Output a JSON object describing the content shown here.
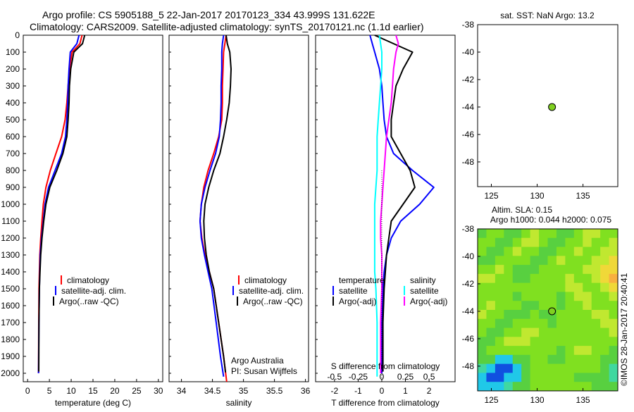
{
  "header": {
    "title_line1": "Argo profile: CS 5905188_5 22-Jan-2017 20170123_334 43.999S 131.622E",
    "title_line2": "Climatology: CARS2009. Satellite-adjusted climatology: synTS_20170121.nc (1.1d earlier)"
  },
  "credit": "©IMOS 28-Jan-2017 20:40:41",
  "colors": {
    "climatology": "#ff0000",
    "satellite": "#0000ff",
    "argo": "#000000",
    "sal_satellite": "#00ffff",
    "sal_argo": "#ff00ff",
    "float_marker": "#80d020"
  },
  "chart_data": [
    {
      "id": "temperature",
      "type": "line",
      "xlabel": "temperature (deg C)",
      "xlim": [
        -1,
        31
      ],
      "xticks": [
        "0",
        "5",
        "10",
        "15",
        "20",
        "25",
        "30"
      ],
      "xtick_values": [
        0,
        5,
        10,
        15,
        20,
        25,
        30
      ],
      "ylim": [
        2050,
        0
      ],
      "yticks": [
        "0",
        "100",
        "200",
        "300",
        "400",
        "500",
        "600",
        "700",
        "800",
        "900",
        "1000",
        "1100",
        "1200",
        "1300",
        "1400",
        "1500",
        "1600",
        "1700",
        "1800",
        "1900",
        "2000"
      ],
      "ytick_values": [
        0,
        100,
        200,
        300,
        400,
        500,
        600,
        700,
        800,
        900,
        1000,
        1100,
        1200,
        1300,
        1400,
        1500,
        1600,
        1700,
        1800,
        1900,
        2000
      ],
      "legend": [
        "climatology",
        "satellite-adj. clim.",
        "Argo(..raw -QC)"
      ],
      "series": [
        {
          "name": "climatology",
          "color": "#ff0000",
          "x": [
            12.5,
            12.0,
            10.2,
            9.6,
            9.3,
            9.0,
            8.6,
            7.8,
            6.5,
            5.2,
            4.2,
            3.6,
            3.3,
            3.0,
            2.8,
            2.7,
            2.6,
            2.55,
            2.5
          ],
          "y": [
            0,
            50,
            100,
            200,
            300,
            400,
            500,
            600,
            700,
            800,
            900,
            1000,
            1100,
            1200,
            1300,
            1400,
            1500,
            1700,
            2000
          ]
        },
        {
          "name": "satellite-adj. clim.",
          "color": "#0000ff",
          "x": [
            11.8,
            11.3,
            9.8,
            9.5,
            9.3,
            9.2,
            9.0,
            8.7,
            7.8,
            6.3,
            4.8,
            4.0,
            3.6,
            3.2,
            2.9,
            2.8,
            2.7,
            2.6,
            2.5
          ],
          "y": [
            0,
            50,
            100,
            200,
            300,
            400,
            500,
            600,
            700,
            800,
            900,
            1000,
            1100,
            1200,
            1300,
            1400,
            1500,
            1700,
            2000
          ]
        },
        {
          "name": "Argo(..raw -QC)",
          "color": "#000000",
          "x": [
            13.1,
            12.6,
            10.6,
            9.9,
            9.6,
            9.5,
            9.3,
            9.0,
            8.1,
            6.7,
            5.1,
            4.2,
            3.7,
            3.3,
            3.0,
            2.85,
            2.7,
            2.6,
            2.55
          ],
          "y": [
            0,
            50,
            100,
            200,
            300,
            400,
            500,
            600,
            700,
            800,
            900,
            1000,
            1100,
            1200,
            1300,
            1400,
            1500,
            1700,
            1990
          ]
        }
      ]
    },
    {
      "id": "salinity",
      "type": "line",
      "xlabel": "salinity",
      "xlim": [
        33.8,
        36.05
      ],
      "xticks": [
        "34",
        "34.5",
        "35",
        "35.5",
        "36"
      ],
      "xtick_values": [
        34,
        34.5,
        35,
        35.5,
        36
      ],
      "ylim": [
        2050,
        0
      ],
      "legend": [
        "climatology",
        "satellite-adj. clim.",
        "Argo(..raw -QC)"
      ],
      "annotation": [
        "Argo Australia",
        "PI: Susan Wijffels"
      ],
      "series": [
        {
          "name": "climatology",
          "color": "#ff0000",
          "x": [
            34.72,
            34.7,
            34.68,
            34.67,
            34.66,
            34.66,
            34.65,
            34.6,
            34.52,
            34.43,
            34.36,
            34.32,
            34.3,
            34.33,
            34.38,
            34.45,
            34.52,
            34.6,
            34.68,
            34.73
          ],
          "y": [
            0,
            50,
            100,
            200,
            300,
            400,
            500,
            600,
            700,
            800,
            900,
            1000,
            1100,
            1200,
            1300,
            1400,
            1500,
            1700,
            1900,
            2050
          ]
        },
        {
          "name": "satellite-adj. clim.",
          "color": "#0000ff",
          "x": [
            34.68,
            34.66,
            34.65,
            34.65,
            34.64,
            34.64,
            34.63,
            34.61,
            34.55,
            34.46,
            34.38,
            34.32,
            34.3,
            34.32,
            34.37,
            34.43,
            34.49,
            34.56,
            34.63,
            34.68
          ],
          "y": [
            0,
            50,
            100,
            200,
            300,
            400,
            500,
            600,
            700,
            800,
            900,
            1000,
            1100,
            1200,
            1300,
            1400,
            1500,
            1700,
            1900,
            2020
          ]
        },
        {
          "name": "Argo(..raw -QC)",
          "color": "#000000",
          "x": [
            34.72,
            34.74,
            34.78,
            34.8,
            34.79,
            34.77,
            34.73,
            34.68,
            34.62,
            34.52,
            34.44,
            34.38,
            34.36,
            34.37,
            34.4,
            34.45,
            34.52,
            34.6,
            34.68,
            34.71
          ],
          "y": [
            0,
            50,
            100,
            200,
            300,
            400,
            500,
            600,
            700,
            800,
            900,
            1000,
            1100,
            1200,
            1300,
            1400,
            1500,
            1700,
            1900,
            1995
          ]
        }
      ]
    },
    {
      "id": "difference",
      "type": "line",
      "xlabel": "T difference from climatology",
      "xlabel_top": "S difference from climatology",
      "xlim": [
        -2.8,
        3.1
      ],
      "xticks": [
        "-2",
        "-1",
        "0",
        "1",
        "2"
      ],
      "xtick_values": [
        -2,
        -1,
        0,
        1,
        2
      ],
      "xticks_top": [
        "-0.5",
        "-0.25",
        "0",
        "0.25",
        "0.5"
      ],
      "xtick_top_values": [
        -2,
        -1,
        0,
        1,
        2
      ],
      "ylim": [
        2050,
        0
      ],
      "legend_headers": [
        "temperature",
        "salinity"
      ],
      "legend": [
        "satellite",
        "Argo(-adj)",
        "satellite",
        "Argo(-adj)"
      ],
      "series": [
        {
          "name": "satellite",
          "group": "temperature",
          "color": "#0000ff",
          "x": [
            -0.5,
            -0.4,
            -0.3,
            -0.1,
            0.0,
            0.05,
            0.1,
            0.2,
            0.5,
            1.3,
            2.2,
            1.6,
            0.8,
            0.4,
            0.2,
            0.1,
            0.05,
            0.0,
            0.0
          ],
          "y": [
            0,
            50,
            100,
            200,
            300,
            400,
            500,
            600,
            700,
            800,
            900,
            1000,
            1100,
            1200,
            1300,
            1400,
            1500,
            1700,
            2000
          ]
        },
        {
          "name": "Argo(-adj)",
          "group": "temperature",
          "color": "#000000",
          "x": [
            -0.3,
            0.5,
            1.3,
            0.9,
            0.6,
            0.5,
            0.4,
            0.4,
            0.8,
            1.2,
            1.4,
            0.9,
            0.4,
            0.3,
            0.2,
            0.15,
            0.1,
            0.05,
            0.05
          ],
          "y": [
            0,
            50,
            100,
            200,
            300,
            400,
            500,
            600,
            700,
            800,
            900,
            1000,
            1100,
            1200,
            1300,
            1400,
            1500,
            1700,
            1990
          ]
        },
        {
          "name": "satellite",
          "group": "salinity",
          "color": "#00ffff",
          "x": [
            -0.1,
            -0.05,
            0.0,
            0.0,
            -0.05,
            -0.1,
            -0.15,
            -0.2,
            -0.2,
            -0.2,
            -0.25,
            -0.3,
            -0.3,
            -0.3,
            -0.3,
            -0.3,
            -0.25,
            -0.2,
            -0.2
          ],
          "y": [
            0,
            50,
            100,
            200,
            300,
            400,
            500,
            600,
            700,
            800,
            900,
            1000,
            1100,
            1200,
            1300,
            1400,
            1500,
            1700,
            2020
          ]
        },
        {
          "name": "Argo(-adj)",
          "group": "salinity",
          "color": "#ff00ff",
          "x": [
            0.6,
            0.7,
            0.6,
            0.5,
            0.45,
            0.4,
            0.3,
            0.2,
            0.15,
            0.1,
            0.05,
            0.0,
            -0.05,
            -0.05,
            0.0,
            0.0,
            0.0,
            -0.05,
            -0.05
          ],
          "y": [
            0,
            50,
            100,
            200,
            300,
            400,
            500,
            600,
            700,
            800,
            900,
            1000,
            1100,
            1200,
            1300,
            1400,
            1500,
            1700,
            2000
          ]
        }
      ]
    },
    {
      "id": "sst_map",
      "type": "scatter",
      "title": "sat. SST: NaN Argo: 13.2",
      "xlim": [
        123.5,
        138.8
      ],
      "ylim": [
        -49.8,
        -38
      ],
      "xticks": [
        "125",
        "130",
        "135"
      ],
      "xtick_values": [
        125,
        130,
        135
      ],
      "yticks": [
        "-38",
        "-40",
        "-42",
        "-44",
        "-46",
        "-48"
      ],
      "ytick_values": [
        -38,
        -40,
        -42,
        -44,
        -46,
        -48
      ],
      "points": [
        {
          "x": 131.62,
          "y": -44.0
        }
      ]
    },
    {
      "id": "sla_map",
      "type": "heatmap",
      "title_line1": "Altim. SLA: 0.15",
      "title_line2": "Argo h1000: 0.044 h2000: 0.075",
      "xlim": [
        123.5,
        138.8
      ],
      "ylim": [
        -49.8,
        -38
      ],
      "xticks": [
        "125",
        "130",
        "135"
      ],
      "xtick_values": [
        125,
        130,
        135
      ],
      "yticks": [
        "-38",
        "-40",
        "-42",
        "-44",
        "-46",
        "-48"
      ],
      "ytick_values": [
        -38,
        -40,
        -42,
        -44,
        -46,
        -48
      ],
      "points": [
        {
          "x": 131.62,
          "y": -44.0
        }
      ],
      "grid": [
        [
          3,
          4,
          4,
          3,
          3,
          4,
          5,
          4,
          4,
          3,
          3,
          4,
          5,
          5,
          4,
          4
        ],
        [
          4,
          4,
          3,
          3,
          4,
          5,
          5,
          4,
          3,
          3,
          4,
          4,
          5,
          4,
          4,
          5
        ],
        [
          4,
          3,
          3,
          4,
          5,
          4,
          4,
          3,
          3,
          4,
          4,
          5,
          4,
          4,
          5,
          5
        ],
        [
          3,
          3,
          4,
          4,
          4,
          4,
          3,
          3,
          4,
          5,
          4,
          4,
          4,
          5,
          5,
          6
        ],
        [
          4,
          4,
          5,
          4,
          3,
          3,
          3,
          4,
          4,
          4,
          4,
          4,
          5,
          5,
          6,
          6
        ],
        [
          5,
          5,
          4,
          4,
          3,
          3,
          4,
          4,
          4,
          4,
          5,
          4,
          4,
          5,
          6,
          7
        ],
        [
          4,
          4,
          4,
          4,
          4,
          4,
          4,
          4,
          4,
          4,
          5,
          5,
          4,
          4,
          5,
          6
        ],
        [
          4,
          4,
          4,
          4,
          3,
          4,
          4,
          4,
          4,
          3,
          4,
          5,
          5,
          4,
          4,
          5
        ],
        [
          4,
          5,
          4,
          4,
          4,
          3,
          3,
          4,
          4,
          3,
          4,
          4,
          5,
          4,
          4,
          4
        ],
        [
          5,
          4,
          4,
          3,
          3,
          3,
          4,
          3,
          3,
          4,
          4,
          4,
          4,
          5,
          5,
          4
        ],
        [
          4,
          4,
          3,
          3,
          4,
          4,
          4,
          4,
          3,
          4,
          4,
          4,
          4,
          4,
          5,
          5
        ],
        [
          4,
          3,
          3,
          4,
          4,
          5,
          5,
          4,
          4,
          4,
          4,
          4,
          4,
          4,
          4,
          5
        ],
        [
          3,
          3,
          4,
          5,
          5,
          5,
          4,
          4,
          4,
          4,
          4,
          4,
          4,
          4,
          4,
          4
        ],
        [
          3,
          4,
          4,
          4,
          4,
          4,
          4,
          4,
          4,
          3,
          4,
          5,
          5,
          4,
          4,
          3
        ],
        [
          3,
          3,
          1,
          1,
          3,
          3,
          4,
          4,
          3,
          3,
          4,
          4,
          4,
          4,
          3,
          3
        ],
        [
          2,
          1,
          0,
          0,
          1,
          3,
          4,
          4,
          4,
          4,
          4,
          4,
          4,
          4,
          3,
          2
        ],
        [
          1,
          0,
          0,
          1,
          1,
          3,
          4,
          4,
          4,
          4,
          4,
          3,
          3,
          3,
          3,
          2
        ],
        [
          1,
          1,
          1,
          2,
          3,
          3,
          4,
          4,
          4,
          4,
          4,
          4,
          4,
          3,
          3,
          3
        ]
      ]
    }
  ]
}
